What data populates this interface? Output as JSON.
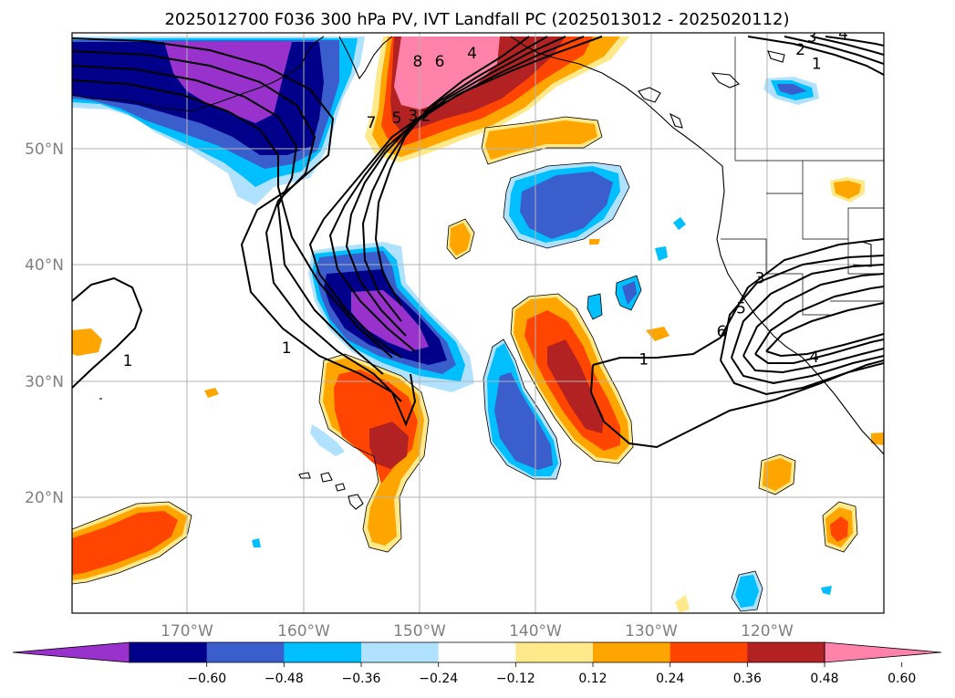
{
  "title": "2025012700 F036 300 hPa PV, IVT Landfall PC (2025013012 - 2025020112)",
  "lat_labels": [
    "50°N",
    "40°N",
    "30°N",
    "20°N"
  ],
  "lon_labels": [
    "170°W",
    "160°W",
    "150°W",
    "140°W",
    "130°W",
    "120°W"
  ],
  "colorbar": {
    "ticks": [
      "−0.60",
      "−0.48",
      "−0.36",
      "−0.24",
      "−0.12",
      "0.12",
      "0.24",
      "0.36",
      "0.48",
      "0.60"
    ],
    "colors": [
      "#9932cc",
      "#00008b",
      "#3a5fcd",
      "#00bfff",
      "#b0e2ff",
      "#ffffff",
      "#ffe98a",
      "#ffa500",
      "#ff4500",
      "#b22222",
      "#ff82ab"
    ]
  },
  "contour_labels": [
    {
      "text": "1",
      "lon": -161.5,
      "lat": 32.8
    },
    {
      "text": "1",
      "lon": -130.7,
      "lat": 31.8
    },
    {
      "text": "1",
      "lon": -115.8,
      "lat": 57.3
    },
    {
      "text": "2",
      "lon": -117.2,
      "lat": 58.5
    },
    {
      "text": "3",
      "lon": -116.2,
      "lat": 59.6
    },
    {
      "text": "4",
      "lon": -113.5,
      "lat": 59.9
    },
    {
      "text": "3",
      "lon": -120.7,
      "lat": 38.8
    },
    {
      "text": "5",
      "lon": -122.3,
      "lat": 36.2
    },
    {
      "text": "6",
      "lon": -124.0,
      "lat": 34.2
    },
    {
      "text": "4",
      "lon": -116.0,
      "lat": 32.0
    },
    {
      "text": "1",
      "lon": -175.2,
      "lat": 31.7
    },
    {
      "text": "8",
      "lon": -150.2,
      "lat": 57.5
    },
    {
      "text": "6",
      "lon": -148.3,
      "lat": 57.5
    },
    {
      "text": "4",
      "lon": -145.5,
      "lat": 58.2
    },
    {
      "text": "7",
      "lon": -154.2,
      "lat": 52.2
    },
    {
      "text": "5",
      "lon": -152.0,
      "lat": 52.6
    },
    {
      "text": "3",
      "lon": -150.6,
      "lat": 52.8
    },
    {
      "text": "2",
      "lon": -149.5,
      "lat": 52.8
    }
  ]
}
